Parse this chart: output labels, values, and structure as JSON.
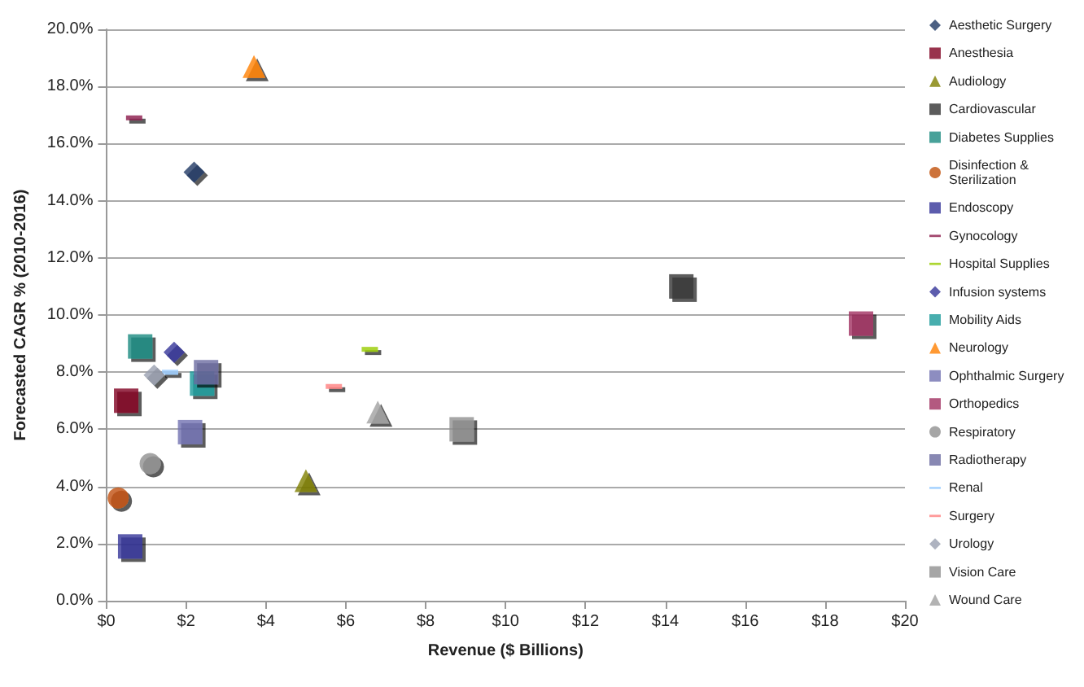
{
  "chart_data": {
    "type": "scatter",
    "xlabel": "Revenue ($ Billions)",
    "ylabel": "Forecasted CAGR % (2010-2016)",
    "xlim": [
      0,
      20
    ],
    "xticks": [
      {
        "value": 0,
        "label": "$0"
      },
      {
        "value": 2,
        "label": "$2"
      },
      {
        "value": 4,
        "label": "$4"
      },
      {
        "value": 6,
        "label": "$6"
      },
      {
        "value": 8,
        "label": "$8"
      },
      {
        "value": 10,
        "label": "$10"
      },
      {
        "value": 12,
        "label": "$12"
      },
      {
        "value": 14,
        "label": "$14"
      },
      {
        "value": 16,
        "label": "$16"
      },
      {
        "value": 18,
        "label": "$18"
      },
      {
        "value": 20,
        "label": "$20"
      }
    ],
    "ylim": [
      0,
      20
    ],
    "yticks": [
      {
        "value": 0,
        "label": "0.0%"
      },
      {
        "value": 2,
        "label": "2.0%"
      },
      {
        "value": 4,
        "label": "4.0%"
      },
      {
        "value": 6,
        "label": "6.0%"
      },
      {
        "value": 8,
        "label": "8.0%"
      },
      {
        "value": 10,
        "label": "10.0%"
      },
      {
        "value": 12,
        "label": "12.0%"
      },
      {
        "value": 14,
        "label": "14.0%"
      },
      {
        "value": 16,
        "label": "16.0%"
      },
      {
        "value": 18,
        "label": "18.0%"
      },
      {
        "value": 20,
        "label": "20.0%"
      }
    ],
    "grid": "y",
    "legend": "right",
    "series": [
      {
        "name": "Aesthetic Surgery",
        "color": "#1f3864",
        "marker": "diamond",
        "x": [
          2.2
        ],
        "values": [
          15.0
        ]
      },
      {
        "name": "Anesthesia",
        "color": "#800020",
        "marker": "square",
        "x": [
          0.5
        ],
        "values": [
          7.0
        ]
      },
      {
        "name": "Audiology",
        "color": "#808000",
        "marker": "triangle",
        "x": [
          5.0
        ],
        "values": [
          4.2
        ]
      },
      {
        "name": "Cardiovascular",
        "color": "#333333",
        "marker": "square",
        "x": [
          14.4
        ],
        "values": [
          11.0
        ]
      },
      {
        "name": "Diabetes Supplies",
        "color": "#1a8a80",
        "marker": "square",
        "x": [
          0.85
        ],
        "values": [
          8.9
        ]
      },
      {
        "name": "Disinfection & Sterilization",
        "color": "#c0500a",
        "marker": "circle",
        "x": [
          0.3
        ],
        "values": [
          3.6
        ]
      },
      {
        "name": "Endoscopy",
        "color": "#333399",
        "marker": "square",
        "x": [
          0.6
        ],
        "values": [
          1.9
        ]
      },
      {
        "name": "Gynocology",
        "color": "#8b1a4a",
        "x": [
          0.7
        ],
        "values": [
          16.9
        ]
      },
      {
        "name": "Hospital Supplies",
        "color": "#99cc00",
        "x": [
          6.6
        ],
        "values": [
          8.8
        ]
      },
      {
        "name": "Infusion systems",
        "color": "#333399",
        "marker": "diamond",
        "x": [
          1.7
        ],
        "values": [
          8.7
        ]
      },
      {
        "name": "Mobility Aids",
        "color": "#1a9a9a",
        "marker": "square",
        "x": [
          2.4
        ],
        "values": [
          7.6
        ]
      },
      {
        "name": "Neurology",
        "color": "#ff8000",
        "marker": "triangle",
        "x": [
          3.7
        ],
        "values": [
          18.7
        ]
      },
      {
        "name": "Ophthalmic Surgery",
        "color": "#7070b0",
        "marker": "square",
        "x": [
          2.1
        ],
        "values": [
          5.9
        ]
      },
      {
        "name": "Orthopedics",
        "color": "#a03060",
        "marker": "square",
        "x": [
          18.9
        ],
        "values": [
          9.7
        ]
      },
      {
        "name": "Respiratory",
        "color": "#909090",
        "marker": "circle",
        "x": [
          1.1
        ],
        "values": [
          4.8
        ]
      },
      {
        "name": "Radiotherapy",
        "color": "#6a6aa0",
        "marker": "square",
        "x": [
          2.5
        ],
        "values": [
          8.0
        ]
      },
      {
        "name": "Renal",
        "color": "#99ccff",
        "x": [
          1.6
        ],
        "values": [
          8.0
        ]
      },
      {
        "name": "Surgery",
        "color": "#ff8080",
        "x": [
          5.7
        ],
        "values": [
          7.5
        ]
      },
      {
        "name": "Urology",
        "color": "#9aa0b0",
        "marker": "diamond",
        "x": [
          1.2
        ],
        "values": [
          7.9
        ]
      },
      {
        "name": "Vision Care",
        "color": "#909090",
        "marker": "square",
        "x": [
          8.9
        ],
        "values": [
          6.0
        ]
      },
      {
        "name": "Wound Care",
        "color": "#a0a0a0",
        "marker": "triangle",
        "x": [
          6.8
        ],
        "values": [
          6.6
        ]
      }
    ]
  }
}
